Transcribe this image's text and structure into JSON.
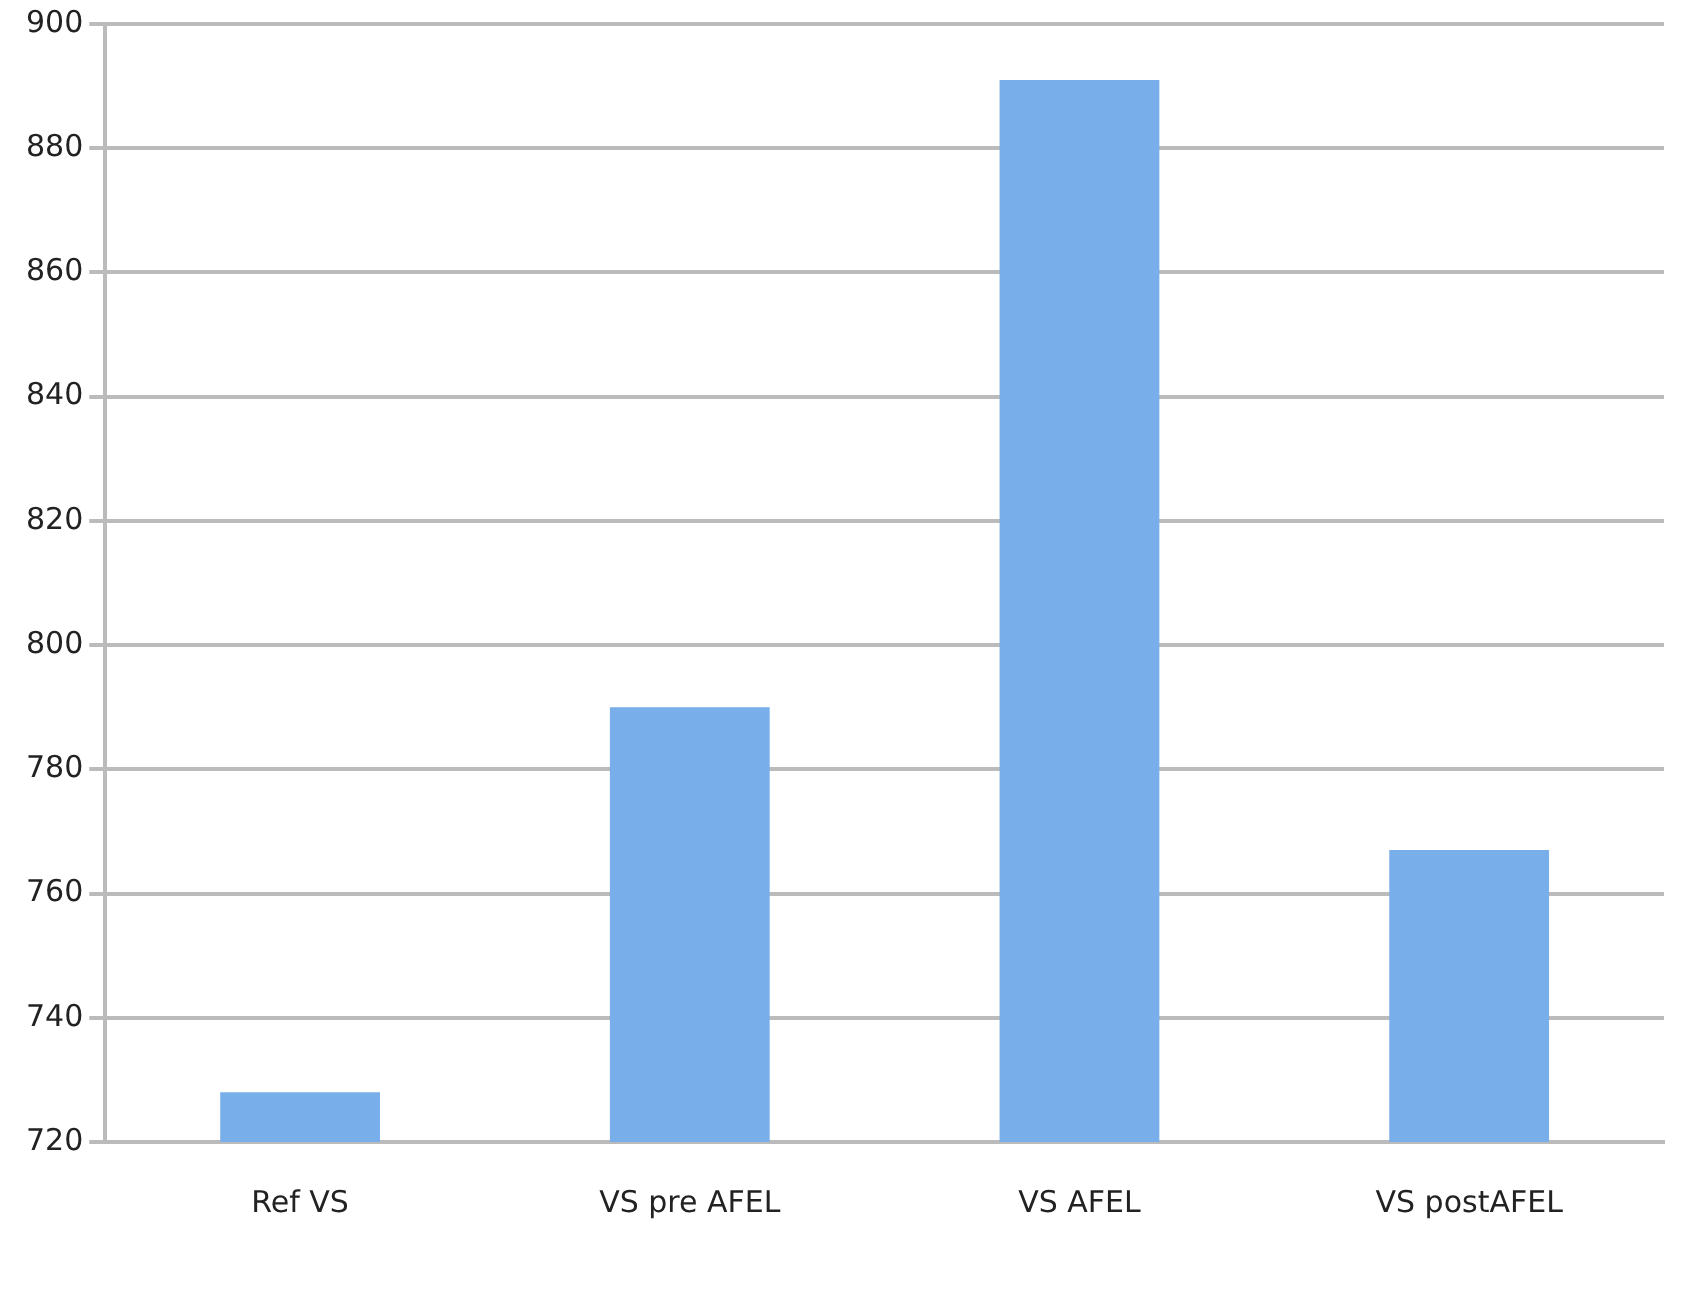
{
  "chart_data": {
    "type": "bar",
    "categories": [
      "Ref VS",
      "VS pre AFEL",
      "VS AFEL",
      "VS postAFEL"
    ],
    "values": [
      728,
      790,
      891,
      767
    ],
    "color": "#78aeea",
    "ylim": [
      720,
      900
    ],
    "yticks": [
      720,
      740,
      760,
      780,
      800,
      820,
      840,
      860,
      880,
      900
    ],
    "grid": "y"
  }
}
